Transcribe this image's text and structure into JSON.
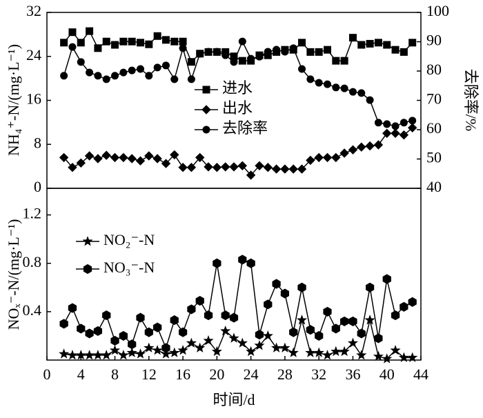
{
  "chart_data": [
    {
      "type": "line",
      "ylabel": "NH₄⁺-N/(mg·L⁻¹)",
      "y2label": "去除率/%",
      "x": [
        2,
        3,
        4,
        5,
        6,
        7,
        8,
        9,
        10,
        11,
        12,
        13,
        14,
        15,
        16,
        17,
        18,
        19,
        20,
        21,
        22,
        23,
        24,
        25,
        26,
        27,
        28,
        29,
        30,
        31,
        32,
        33,
        34,
        35,
        36,
        37,
        38,
        39,
        40,
        41,
        42,
        43
      ],
      "xlim": [
        0,
        44
      ],
      "ylim": [
        0,
        32
      ],
      "yticks": [
        0,
        8,
        16,
        24,
        32
      ],
      "y2lim": [
        40,
        100
      ],
      "y2ticks": [
        40,
        50,
        60,
        70,
        80,
        90,
        100
      ],
      "series": [
        {
          "name": "进水",
          "color": "#000000",
          "marker": "square",
          "values": [
            26.5,
            28.4,
            26.5,
            28.6,
            25.5,
            26.7,
            26.1,
            26.7,
            26.7,
            26.5,
            26.2,
            27.7,
            27,
            26.7,
            26.7,
            23,
            24.5,
            24.8,
            24.8,
            24.8,
            24,
            23.2,
            23.2,
            24.2,
            24.2,
            24.8,
            25.2,
            25.2,
            26.5,
            24.8,
            24.8,
            25.2,
            23.2,
            23.2,
            27.4,
            26.1,
            26.3,
            26.5,
            26.1,
            25.2,
            24.8,
            26.5
          ]
        },
        {
          "name": "出水",
          "color": "#000000",
          "marker": "diamond",
          "values": [
            5.6,
            3.8,
            4.6,
            5.9,
            5.4,
            6,
            5.6,
            5.6,
            5.4,
            5,
            5.9,
            5.4,
            4.5,
            6.1,
            3.8,
            3.8,
            5.6,
            3.9,
            3.8,
            3.9,
            3.9,
            4.1,
            2.4,
            4.1,
            3.8,
            3.5,
            3.5,
            3.5,
            3.5,
            5.1,
            5.6,
            5.6,
            5.6,
            6.4,
            7,
            7.5,
            7.7,
            7.9,
            10,
            10,
            9.7,
            11
          ]
        },
        {
          "name": "去除率",
          "color": "#000000",
          "marker": "circle",
          "axis": "y2",
          "values": [
            78.4,
            88.2,
            83.1,
            79.5,
            78.4,
            77.2,
            78.4,
            79.5,
            80.2,
            80.7,
            78.4,
            81.2,
            81.9,
            77.2,
            87.8,
            77.2,
            85.9,
            86.6,
            86.6,
            85.4,
            83.1,
            90.1,
            84.2,
            84.9,
            86.6,
            87.3,
            86.6,
            87.8,
            80.7,
            77.2,
            76,
            75.5,
            74.4,
            74.1,
            72.9,
            72.5,
            70.1,
            62.4,
            61.9,
            61.2,
            62.4,
            63.1
          ]
        }
      ]
    },
    {
      "type": "line",
      "xlabel": "时间/d",
      "ylabel": "NOₓ⁻-N/(mg·L⁻¹)",
      "x": [
        2,
        3,
        4,
        5,
        6,
        7,
        8,
        9,
        10,
        11,
        12,
        13,
        14,
        15,
        16,
        17,
        18,
        19,
        20,
        21,
        22,
        23,
        24,
        25,
        26,
        27,
        28,
        29,
        30,
        31,
        32,
        33,
        34,
        35,
        36,
        37,
        38,
        39,
        40,
        41,
        42,
        43
      ],
      "xlim": [
        0,
        44
      ],
      "xticks": [
        0,
        4,
        8,
        12,
        16,
        20,
        24,
        28,
        32,
        36,
        40,
        44
      ],
      "ylim": [
        0,
        1.42
      ],
      "yticks": [
        0.4,
        0.8,
        1.2
      ],
      "series": [
        {
          "name": "NO₂⁻-N",
          "color": "#000000",
          "marker": "star",
          "values": [
            0.05,
            0.04,
            0.04,
            0.04,
            0.04,
            0.04,
            0.08,
            0.04,
            0.06,
            0.05,
            0.1,
            0.08,
            0.05,
            0.06,
            0.08,
            0.14,
            0.1,
            0.16,
            0.07,
            0.24,
            0.18,
            0.14,
            0.07,
            0.12,
            0.2,
            0.1,
            0.1,
            0.06,
            0.33,
            0.06,
            0.06,
            0.04,
            0.07,
            0.07,
            0.14,
            0.04,
            0.33,
            0.03,
            0.01,
            0.08,
            0.02,
            0.02
          ]
        },
        {
          "name": "NO₃⁻-N",
          "color": "#000000",
          "marker": "hexagon",
          "values": [
            0.3,
            0.43,
            0.26,
            0.22,
            0.24,
            0.37,
            0.16,
            0.2,
            0.13,
            0.35,
            0.23,
            0.27,
            0.1,
            0.33,
            0.23,
            0.42,
            0.49,
            0.37,
            0.8,
            0.37,
            0.35,
            0.83,
            0.8,
            0.21,
            0.46,
            0.63,
            0.55,
            0.23,
            0.6,
            0.25,
            0.2,
            0.4,
            0.26,
            0.32,
            0.32,
            0.22,
            0.6,
            0.18,
            0.67,
            0.37,
            0.44,
            0.48
          ]
        }
      ]
    }
  ]
}
